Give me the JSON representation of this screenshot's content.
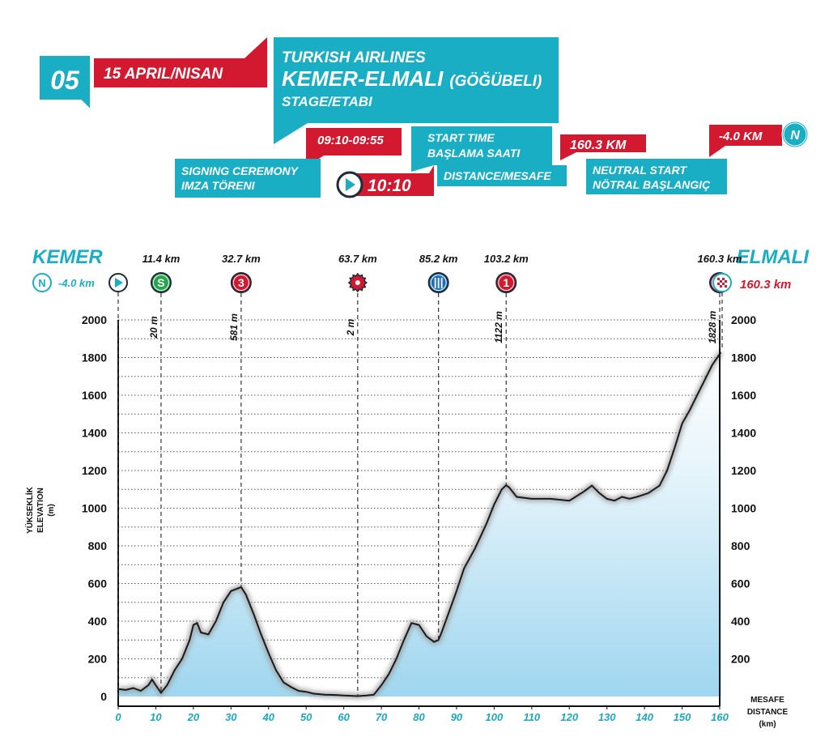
{
  "colors": {
    "teal": "#1aaec4",
    "red": "#d3192f",
    "green": "#26a54a",
    "blue": "#1c6fb8"
  },
  "header": {
    "stage_no": "05",
    "date": "15 APRIL/NISAN",
    "title_line1": "TURKISH AIRLINES",
    "title_line2": "KEMER-ELMALI",
    "title_line2b": "(GÖĞÜBELI)",
    "title_line3": "STAGE/ETABI",
    "signing_time": "09:10-09:55",
    "signing_label1": "SIGNING CEREMONY",
    "signing_label2": "IMZA TÖRENI",
    "start_time": "10:10",
    "start_label1": "START TIME",
    "start_label2": "BAŞLAMA SAATI",
    "distance_value": "160.3 KM",
    "distance_label": "DISTANCE/MESAFE",
    "neutral_value": "-4.0 KM",
    "neutral_icon_letter": "N",
    "neutral_label1": "NEUTRAL START",
    "neutral_label2": "NÖTRAL BAŞLANGIÇ"
  },
  "route": {
    "start_city": "KEMER",
    "end_city": "ELMALI",
    "start_neutral_text": "-4.0 km",
    "finish_text": "160.3 km"
  },
  "chart_data": {
    "type": "area",
    "title": "",
    "ylabel_lines": [
      "YÜKSEKLİK",
      "ELEVATION",
      "(m)"
    ],
    "xlabel_lines": [
      "MESAFE",
      "DISTANCE",
      "(km)"
    ],
    "xlim": [
      0,
      160
    ],
    "ylim": [
      0,
      2000
    ],
    "x_ticks": [
      0,
      10,
      20,
      30,
      40,
      50,
      60,
      70,
      80,
      90,
      100,
      110,
      120,
      130,
      140,
      150,
      160
    ],
    "y_ticks": [
      2000,
      1800,
      1600,
      1400,
      1200,
      1000,
      800,
      600,
      400,
      200,
      0
    ],
    "x": [
      0,
      2,
      4,
      6,
      8,
      9,
      10,
      11.4,
      13,
      15,
      17,
      19,
      20,
      21,
      22,
      24,
      26,
      28,
      30,
      32.7,
      34,
      36,
      38,
      40,
      42,
      44,
      46,
      48,
      50,
      52,
      55,
      58,
      60,
      63.7,
      66,
      68,
      70,
      72,
      74,
      76,
      78,
      80,
      82,
      84,
      85.2,
      86,
      88,
      90,
      92,
      95,
      98,
      100,
      102,
      103.2,
      104,
      106,
      110,
      115,
      120,
      124,
      126,
      128,
      130,
      132,
      134,
      136,
      138,
      141,
      144,
      146,
      148,
      150,
      152,
      154,
      156,
      158,
      160.3
    ],
    "elevation": [
      40,
      35,
      45,
      30,
      60,
      90,
      60,
      20,
      60,
      140,
      200,
      300,
      380,
      390,
      340,
      330,
      400,
      500,
      560,
      581,
      540,
      440,
      330,
      230,
      140,
      75,
      50,
      30,
      25,
      15,
      10,
      8,
      5,
      2,
      5,
      10,
      60,
      120,
      200,
      300,
      390,
      380,
      320,
      290,
      300,
      340,
      450,
      560,
      680,
      790,
      920,
      1020,
      1100,
      1122,
      1110,
      1060,
      1050,
      1050,
      1040,
      1090,
      1120,
      1080,
      1050,
      1040,
      1060,
      1050,
      1060,
      1080,
      1120,
      1200,
      1320,
      1450,
      1520,
      1600,
      1680,
      1760,
      1828
    ],
    "markers": [
      {
        "km": -4.0,
        "type": "neutral"
      },
      {
        "km": 0,
        "type": "start"
      },
      {
        "km": 11.4,
        "type": "sprint",
        "label": "11.4 km",
        "icon_text": "S",
        "alt": "20 m"
      },
      {
        "km": 32.7,
        "type": "climb3",
        "label": "32.7 km",
        "icon_text": "3",
        "alt": "581 m"
      },
      {
        "km": 63.7,
        "type": "bonus",
        "label": "63.7 km",
        "alt": "2 m"
      },
      {
        "km": 85.2,
        "type": "feed",
        "label": "85.2 km"
      },
      {
        "km": 103.2,
        "type": "climb1",
        "label": "103.2 km",
        "icon_text": "1",
        "alt": "1122 m"
      },
      {
        "km": 160.3,
        "type": "climb1",
        "label": "160.3 km",
        "icon_text": "1",
        "alt": "1828 m"
      },
      {
        "km": 160.3,
        "type": "finish"
      }
    ]
  }
}
